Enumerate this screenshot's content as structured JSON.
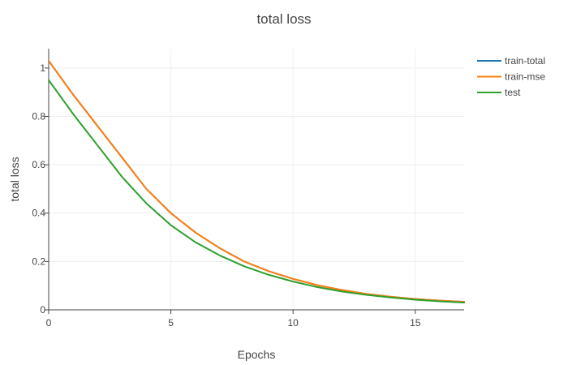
{
  "chart_data": {
    "type": "line",
    "title": "total loss",
    "xlabel": "Epochs",
    "ylabel": "total loss",
    "xlim": [
      0,
      17
    ],
    "ylim": [
      0,
      1.08
    ],
    "x_ticks": [
      0,
      5,
      10,
      15
    ],
    "y_ticks": [
      0,
      0.2,
      0.4,
      0.6,
      0.8,
      1
    ],
    "grid": true,
    "legend_position": "top-right",
    "x": [
      0,
      1,
      2,
      3,
      4,
      5,
      6,
      7,
      8,
      9,
      10,
      11,
      12,
      13,
      14,
      15,
      16,
      17
    ],
    "series": [
      {
        "name": "train-total",
        "color": "#1f77b4",
        "values": [
          1.03,
          0.89,
          0.76,
          0.63,
          0.5,
          0.4,
          0.32,
          0.255,
          0.2,
          0.16,
          0.128,
          0.102,
          0.082,
          0.066,
          0.054,
          0.045,
          0.038,
          0.033
        ]
      },
      {
        "name": "train-mse",
        "color": "#ff7f0e",
        "values": [
          1.03,
          0.89,
          0.76,
          0.63,
          0.5,
          0.4,
          0.32,
          0.255,
          0.2,
          0.16,
          0.128,
          0.102,
          0.082,
          0.066,
          0.054,
          0.045,
          0.038,
          0.033
        ]
      },
      {
        "name": "test",
        "color": "#2ca02c",
        "values": [
          0.95,
          0.81,
          0.68,
          0.55,
          0.44,
          0.35,
          0.28,
          0.225,
          0.18,
          0.145,
          0.117,
          0.094,
          0.076,
          0.062,
          0.051,
          0.042,
          0.035,
          0.03
        ]
      }
    ]
  }
}
